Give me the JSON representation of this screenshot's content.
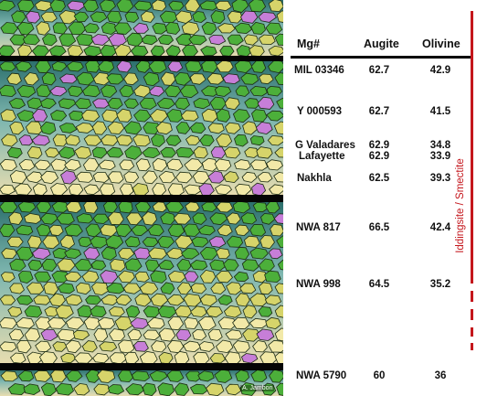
{
  "colors": {
    "olivine_green": "#4caf3a",
    "augite_yellow": "#d6d46a",
    "pale_yellow": "#f2e9a8",
    "purple": "#c77ed8",
    "interstitial_teal": "#2b6f6c",
    "alteration_red": "#c4161c"
  },
  "table": {
    "headers": [
      "Mg#",
      "Augite",
      "Olivine"
    ],
    "rows": [
      {
        "name": "MIL 03346",
        "augite": "62.7",
        "olivine": "42.9"
      },
      {
        "name": "Y 000593",
        "augite": "62.7",
        "olivine": "41.5"
      },
      {
        "name": "G Valadares",
        "augite": "62.9",
        "olivine": "34.8"
      },
      {
        "name": "Lafayette",
        "augite": "62.9",
        "olivine": "33.9"
      },
      {
        "name": "Nakhla",
        "augite": "62.5",
        "olivine": "39.3"
      },
      {
        "name": "NWA 817",
        "augite": "66.5",
        "olivine": "42.4"
      },
      {
        "name": "NWA 998",
        "augite": "64.5",
        "olivine": "35.2"
      },
      {
        "name": "NWA 5790",
        "augite": "60",
        "olivine": "36"
      }
    ]
  },
  "alteration_label": "Iddingsite / Smectite",
  "credit": "A. Jambon"
}
